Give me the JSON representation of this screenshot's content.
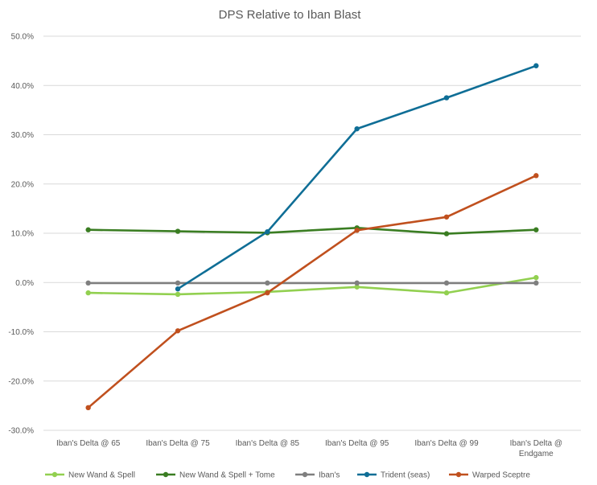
{
  "chart_data": {
    "type": "line",
    "title": "DPS Relative to Iban Blast",
    "xlabel": "",
    "ylabel": "",
    "categories": [
      [
        "Iban's Delta @ 65"
      ],
      [
        "Iban's Delta @ 75"
      ],
      [
        "Iban's Delta @ 85"
      ],
      [
        "Iban's Delta @ 95"
      ],
      [
        "Iban's Delta @ 99"
      ],
      [
        "Iban's Delta @",
        "Endgame"
      ]
    ],
    "ylim": [
      -30,
      50
    ],
    "ytick_step": 10,
    "ytick_labels": [
      "-30.0%",
      "-20.0%",
      "-10.0%",
      "0.0%",
      "10.0%",
      "20.0%",
      "30.0%",
      "40.0%",
      "50.0%"
    ],
    "grid": true,
    "legend_position": "bottom",
    "series": [
      {
        "name": "New Wand & Spell",
        "color": "#92d050",
        "values": [
          -2.1,
          -2.4,
          -1.9,
          -0.9,
          -2.1,
          1.0
        ]
      },
      {
        "name": "New Wand & Spell + Tome",
        "color": "#3a7d22",
        "values": [
          10.7,
          10.4,
          10.1,
          11.1,
          9.9,
          10.7
        ]
      },
      {
        "name": "Iban's",
        "color": "#7f7f7f",
        "values": [
          -0.1,
          -0.1,
          -0.1,
          -0.1,
          -0.1,
          -0.1
        ]
      },
      {
        "name": "Trident (seas)",
        "color": "#0f6e96",
        "values": [
          null,
          -1.3,
          10.3,
          31.2,
          37.5,
          44.0
        ]
      },
      {
        "name": "Warped Sceptre",
        "color": "#c0501e",
        "values": [
          -25.4,
          -9.8,
          -2.1,
          10.6,
          13.3,
          21.7
        ]
      }
    ]
  }
}
